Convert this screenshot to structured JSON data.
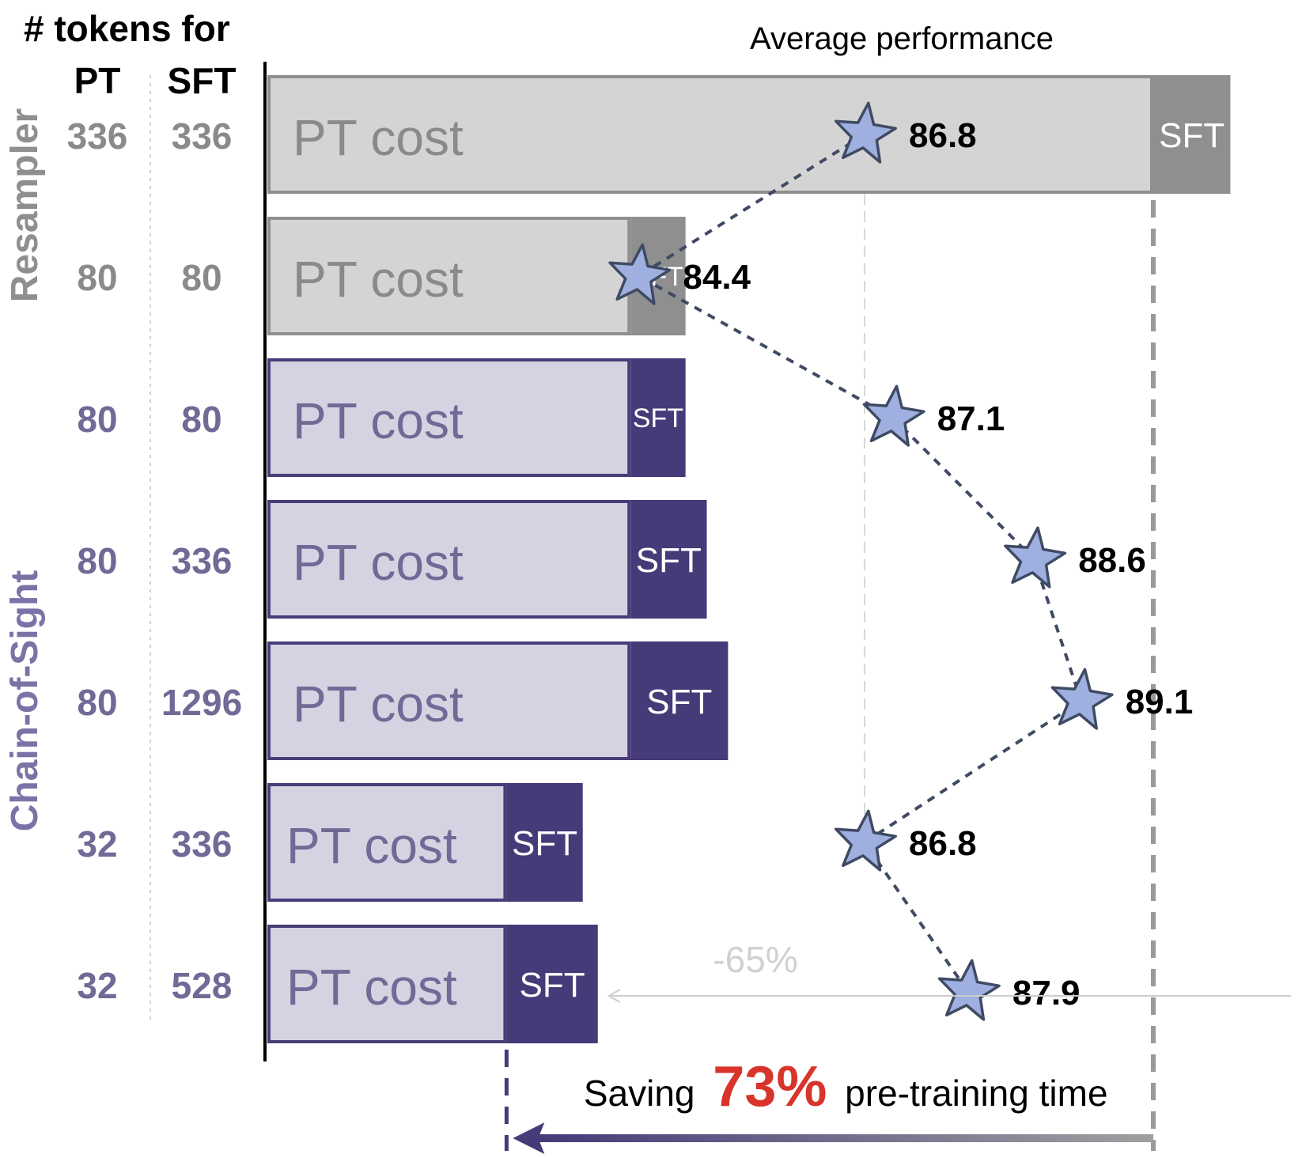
{
  "header": {
    "line1": "# tokens for",
    "col_pt": "PT",
    "col_sft": "SFT"
  },
  "groups": [
    {
      "label": "Resampler",
      "color": "#8f8f8f",
      "rows": [
        0,
        1
      ]
    },
    {
      "label": "Chain-of-Sight",
      "color": "#7b73a6",
      "rows": [
        2,
        6
      ]
    }
  ],
  "colors": {
    "resampler_pt_bar": "#d4d4d4",
    "resampler_pt_border": "#8f8f8f",
    "resampler_sft_bar": "#8f8f8f",
    "resampler_pt_text": "#8a8a8a",
    "cos_pt_bar": "#d5d3e1",
    "cos_pt_border": "#4a3c7a",
    "cos_sft_bar": "#463a78",
    "cos_pt_text": "#6f6a96",
    "star_fill": "#9fb0e0",
    "star_stroke": "#3f4a63",
    "highlight_red": "#d9342b"
  },
  "chart_data": {
    "type": "bar",
    "orientation": "horizontal",
    "stacked": true,
    "title": "Average performance",
    "bar_segments": [
      "PT cost",
      "SFT"
    ],
    "rows": [
      {
        "group": "Resampler",
        "pt_tokens": "336",
        "sft_tokens": "336",
        "pt_cost": 1.0,
        "sft_cost": 0.087,
        "pt_label": "PT cost",
        "sft_label": "SFT",
        "performance": 86.8,
        "performance_label": "86.8"
      },
      {
        "group": "Resampler",
        "pt_tokens": "80",
        "sft_tokens": "80",
        "pt_cost": 0.41,
        "sft_cost": 0.062,
        "pt_label": "PT cost",
        "sft_label": "SFT",
        "performance": 84.4,
        "performance_label": "84.4"
      },
      {
        "group": "Chain-of-Sight",
        "pt_tokens": "80",
        "sft_tokens": "80",
        "pt_cost": 0.41,
        "sft_cost": 0.062,
        "pt_label": "PT cost",
        "sft_label": "SFT",
        "performance": 87.1,
        "performance_label": "87.1"
      },
      {
        "group": "Chain-of-Sight",
        "pt_tokens": "80",
        "sft_tokens": "336",
        "pt_cost": 0.41,
        "sft_cost": 0.086,
        "pt_label": "PT cost",
        "sft_label": "SFT",
        "performance": 88.6,
        "performance_label": "88.6"
      },
      {
        "group": "Chain-of-Sight",
        "pt_tokens": "80",
        "sft_tokens": "1296",
        "pt_cost": 0.41,
        "sft_cost": 0.11,
        "pt_label": "PT cost",
        "sft_label": "SFT",
        "performance": 89.1,
        "performance_label": "89.1"
      },
      {
        "group": "Chain-of-Sight",
        "pt_tokens": "32",
        "sft_tokens": "336",
        "pt_cost": 0.27,
        "sft_cost": 0.086,
        "pt_label": "PT cost",
        "sft_label": "SFT",
        "performance": 86.8,
        "performance_label": "86.8"
      },
      {
        "group": "Chain-of-Sight",
        "pt_tokens": "32",
        "sft_tokens": "528",
        "pt_cost": 0.27,
        "sft_cost": 0.103,
        "pt_label": "PT cost",
        "sft_label": "SFT",
        "performance": 87.9,
        "performance_label": "87.9"
      }
    ],
    "performance_scale": {
      "reference": 86.8
    },
    "annotations": {
      "sft_arrow_label": "-65%",
      "saving_prefix": "Saving",
      "saving_value": "73%",
      "saving_suffix": "pre-training time"
    }
  }
}
